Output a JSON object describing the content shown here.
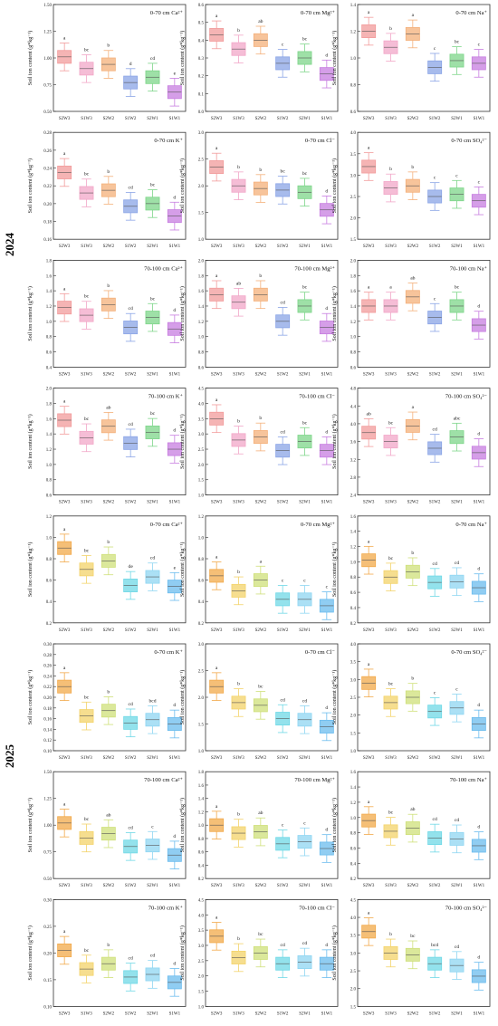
{
  "figure": {
    "ylabel": "Soil ion content (g*kg⁻¹)",
    "categories": [
      "S2W3",
      "S1W3",
      "S2W2",
      "S1W2",
      "S2W1",
      "S1W1"
    ],
    "colors": {
      "2024": [
        "#f29b9b",
        "#f2a7c8",
        "#f4b07a",
        "#8aa4e6",
        "#7ed68a",
        "#c77de0"
      ],
      "2025": [
        "#f2a94a",
        "#f3d36a",
        "#cfe07a",
        "#6fd8e6",
        "#8fd6f2",
        "#6bbcee"
      ]
    }
  },
  "years": [
    {
      "label": "2024"
    },
    {
      "label": "2025"
    }
  ],
  "chart_data": [
    {
      "type": "box",
      "year": "2024",
      "title": "0-70 cm Ca²⁺",
      "ylim": [
        0.5,
        1.5
      ],
      "ticks": [
        "0.50",
        "0.75",
        "1.00",
        "1.25",
        "1.50"
      ],
      "values": [
        1.01,
        0.9,
        0.94,
        0.77,
        0.82,
        0.68
      ],
      "letters": [
        "a",
        "bc",
        "b",
        "d",
        "cd",
        "e"
      ]
    },
    {
      "type": "box",
      "year": "2024",
      "title": "0-70 cm Mg²⁺",
      "ylim": [
        0,
        0.6
      ],
      "ticks": [
        "0.0",
        "0.1",
        "0.2",
        "0.3",
        "0.4",
        "0.5",
        "0.6"
      ],
      "values": [
        0.43,
        0.35,
        0.4,
        0.27,
        0.3,
        0.21
      ],
      "letters": [
        "a",
        "b",
        "ab",
        "c",
        "bc",
        "d"
      ]
    },
    {
      "type": "box",
      "year": "2024",
      "title": "0-70 cm Na⁺",
      "ylim": [
        0.6,
        1.4
      ],
      "ticks": [
        "0.6",
        "0.8",
        "1.0",
        "1.2",
        "1.4"
      ],
      "values": [
        1.2,
        1.08,
        1.18,
        0.93,
        0.98,
        0.96
      ],
      "letters": [
        "a",
        "b",
        "a",
        "c",
        "bc",
        "c"
      ]
    },
    {
      "type": "box",
      "year": "2024",
      "title": "0-70 cm K⁺",
      "ylim": [
        0.16,
        0.28
      ],
      "ticks": [
        "0.16",
        "0.18",
        "0.20",
        "0.22",
        "0.24",
        "0.26",
        "0.28"
      ],
      "values": [
        0.235,
        0.212,
        0.215,
        0.197,
        0.2,
        0.186
      ],
      "letters": [
        "a",
        "bc",
        "b",
        "cd",
        "bc",
        "d"
      ]
    },
    {
      "type": "box",
      "year": "2024",
      "title": "0-70 cm Cl⁻",
      "ylim": [
        1.0,
        3.0
      ],
      "ticks": [
        "1.0",
        "1.5",
        "2.0",
        "2.5",
        "3.0"
      ],
      "values": [
        2.35,
        2.0,
        1.95,
        1.92,
        1.88,
        1.55
      ],
      "letters": [
        "a",
        "b",
        "b",
        "bc",
        "bc",
        "d"
      ]
    },
    {
      "type": "box",
      "year": "2024",
      "title": "0-70 cm SO₄²⁻",
      "ylim": [
        1.5,
        4.0
      ],
      "ticks": [
        "1.5",
        "2.0",
        "2.5",
        "3.0",
        "3.5",
        "4.0"
      ],
      "values": [
        3.2,
        2.7,
        2.75,
        2.5,
        2.55,
        2.4
      ],
      "letters": [
        "a",
        "b",
        "b",
        "c",
        "c",
        "c"
      ]
    },
    {
      "type": "box",
      "year": "2024",
      "title": "70-100 cm Ca²⁺",
      "ylim": [
        0.4,
        1.8
      ],
      "ticks": [
        "0.4",
        "0.6",
        "0.8",
        "1.0",
        "1.2",
        "1.4",
        "1.6",
        "1.8"
      ],
      "values": [
        1.18,
        1.08,
        1.22,
        0.92,
        1.05,
        0.9
      ],
      "letters": [
        "a",
        "bc",
        "b",
        "cd",
        "bc",
        "d"
      ]
    },
    {
      "type": "box",
      "year": "2024",
      "title": "70-100 cm Mg²⁺",
      "ylim": [
        0.6,
        2.0
      ],
      "ticks": [
        "0.6",
        "0.8",
        "1.0",
        "1.2",
        "1.4",
        "1.6",
        "1.8",
        "2.0"
      ],
      "values": [
        1.55,
        1.45,
        1.55,
        1.2,
        1.4,
        1.12
      ],
      "letters": [
        "a",
        "ab",
        "b",
        "cd",
        "bc",
        "d"
      ]
    },
    {
      "type": "box",
      "year": "2024",
      "title": "70-100 cm Na⁺",
      "ylim": [
        0.6,
        2.0
      ],
      "ticks": [
        "0.6",
        "0.8",
        "1.0",
        "1.2",
        "1.4",
        "1.6",
        "1.8",
        "2.0"
      ],
      "values": [
        1.4,
        1.4,
        1.52,
        1.25,
        1.4,
        1.15
      ],
      "letters": [
        "a",
        "a",
        "ab",
        "c",
        "bc",
        "d"
      ]
    },
    {
      "type": "box",
      "year": "2024",
      "title": "70-100 cm K⁺",
      "ylim": [
        0.6,
        2.0
      ],
      "ticks": [
        "0.6",
        "0.8",
        "1.0",
        "1.2",
        "1.4",
        "1.6",
        "1.8",
        "2.0"
      ],
      "values": [
        1.58,
        1.35,
        1.5,
        1.28,
        1.42,
        1.2
      ],
      "letters": [
        "a",
        "bc",
        "ab",
        "cd",
        "bc",
        "d"
      ]
    },
    {
      "type": "box",
      "year": "2024",
      "title": "70-100 cm Cl⁻",
      "ylim": [
        1.0,
        4.5
      ],
      "ticks": [
        "1.0",
        "1.5",
        "2.0",
        "2.5",
        "3.0",
        "3.5",
        "4.0",
        "4.5"
      ],
      "values": [
        3.5,
        2.8,
        2.9,
        2.45,
        2.75,
        2.45
      ],
      "letters": [
        "a",
        "b",
        "b",
        "cd",
        "bc",
        "d"
      ]
    },
    {
      "type": "box",
      "year": "2024",
      "title": "70-100 cm SO₄²⁻",
      "ylim": [
        2.4,
        4.8
      ],
      "ticks": [
        "2.4",
        "2.8",
        "3.2",
        "3.6",
        "4.0",
        "4.4",
        "4.8"
      ],
      "values": [
        3.8,
        3.6,
        3.95,
        3.45,
        3.7,
        3.35
      ],
      "letters": [
        "ab",
        "bc",
        "a",
        "cd",
        "abc",
        "d"
      ]
    },
    {
      "type": "box",
      "year": "2025",
      "title": "0-70 cm Ca²⁺",
      "ylim": [
        0.2,
        1.2
      ],
      "ticks": [
        "0.2",
        "0.4",
        "0.6",
        "0.8",
        "1.0",
        "1.2"
      ],
      "values": [
        0.9,
        0.7,
        0.78,
        0.55,
        0.63,
        0.54
      ],
      "letters": [
        "a",
        "bc",
        "b",
        "de",
        "cd",
        "e"
      ]
    },
    {
      "type": "box",
      "year": "2025",
      "title": "0-70 cm Mg²⁺",
      "ylim": [
        0.2,
        1.2
      ],
      "ticks": [
        "0.2",
        "0.4",
        "0.6",
        "0.8",
        "1.0",
        "1.2"
      ],
      "values": [
        0.64,
        0.5,
        0.6,
        0.42,
        0.42,
        0.36
      ],
      "letters": [
        "a",
        "b",
        "a",
        "c",
        "c",
        "c"
      ]
    },
    {
      "type": "box",
      "year": "2025",
      "title": "0-70 cm Na⁺",
      "ylim": [
        0.2,
        1.6
      ],
      "ticks": [
        "0.2",
        "0.4",
        "0.6",
        "0.8",
        "1.0",
        "1.2",
        "1.4",
        "1.6"
      ],
      "values": [
        1.02,
        0.8,
        0.87,
        0.73,
        0.74,
        0.66
      ],
      "letters": [
        "a",
        "bc",
        "b",
        "cd",
        "cd",
        "d"
      ]
    },
    {
      "type": "box",
      "year": "2025",
      "title": "0-70 cm K⁺",
      "ylim": [
        0.1,
        0.3
      ],
      "ticks": [
        "0.10",
        "0.12",
        "0.14",
        "0.16",
        "0.18",
        "0.20",
        "0.22",
        "0.24",
        "0.26",
        "0.28",
        "0.30"
      ],
      "values": [
        0.22,
        0.165,
        0.175,
        0.152,
        0.158,
        0.15
      ],
      "letters": [
        "a",
        "bc",
        "b",
        "cd",
        "bcd",
        "d"
      ]
    },
    {
      "type": "box",
      "year": "2025",
      "title": "0-70 cm Cl⁻",
      "ylim": [
        1.0,
        3.0
      ],
      "ticks": [
        "1.0",
        "1.5",
        "2.0",
        "2.5",
        "3.0"
      ],
      "values": [
        2.2,
        1.9,
        1.85,
        1.6,
        1.58,
        1.45
      ],
      "letters": [
        "a",
        "b",
        "bc",
        "cd",
        "cd",
        "d"
      ]
    },
    {
      "type": "box",
      "year": "2025",
      "title": "0-70 cm SO₄²⁻",
      "ylim": [
        1.0,
        4.0
      ],
      "ticks": [
        "1.0",
        "1.5",
        "2.0",
        "2.5",
        "3.0",
        "3.5",
        "4.0"
      ],
      "values": [
        2.9,
        2.35,
        2.5,
        2.1,
        2.2,
        1.75
      ],
      "letters": [
        "a",
        "bc",
        "b",
        "c",
        "c",
        "d"
      ]
    },
    {
      "type": "box",
      "year": "2025",
      "title": "70-100 cm Ca²⁺",
      "ylim": [
        0.5,
        1.5
      ],
      "ticks": [
        "0.50",
        "0.75",
        "1.00",
        "1.25",
        "1.50"
      ],
      "values": [
        1.02,
        0.88,
        0.92,
        0.8,
        0.81,
        0.72
      ],
      "letters": [
        "a",
        "bc",
        "ab",
        "cd",
        "c",
        "d"
      ]
    },
    {
      "type": "box",
      "year": "2025",
      "title": "70-100 cm Mg²⁺",
      "ylim": [
        0.2,
        1.8
      ],
      "ticks": [
        "0.2",
        "0.4",
        "0.6",
        "0.8",
        "1.0",
        "1.2",
        "1.4",
        "1.6",
        "1.8"
      ],
      "values": [
        1.0,
        0.88,
        0.9,
        0.72,
        0.75,
        0.65
      ],
      "letters": [
        "a",
        "b",
        "ab",
        "c",
        "c",
        "d"
      ]
    },
    {
      "type": "box",
      "year": "2025",
      "title": "70-100 cm Na⁺",
      "ylim": [
        0.2,
        1.6
      ],
      "ticks": [
        "0.2",
        "0.4",
        "0.6",
        "0.8",
        "1.0",
        "1.2",
        "1.4",
        "1.6"
      ],
      "values": [
        0.96,
        0.82,
        0.86,
        0.73,
        0.72,
        0.63
      ],
      "letters": [
        "a",
        "bc",
        "ab",
        "cd",
        "cd",
        "d"
      ]
    },
    {
      "type": "box",
      "year": "2025",
      "title": "70-100 cm K⁺",
      "ylim": [
        0.1,
        0.3
      ],
      "ticks": [
        "0.10",
        "0.15",
        "0.20",
        "0.25",
        "0.30"
      ],
      "values": [
        0.205,
        0.17,
        0.18,
        0.155,
        0.16,
        0.145
      ],
      "letters": [
        "a",
        "bc",
        "b",
        "cd",
        "cd",
        "d"
      ]
    },
    {
      "type": "box",
      "year": "2025",
      "title": "70-100 cm Cl⁻",
      "ylim": [
        1.0,
        4.5
      ],
      "ticks": [
        "1.0",
        "1.5",
        "2.0",
        "2.5",
        "3.0",
        "3.5",
        "4.0",
        "4.5"
      ],
      "values": [
        3.3,
        2.6,
        2.75,
        2.4,
        2.45,
        2.4
      ],
      "letters": [
        "a",
        "b",
        "bc",
        "cd",
        "cd",
        "d"
      ]
    },
    {
      "type": "box",
      "year": "2025",
      "title": "70-100 cm SO₄²⁻",
      "ylim": [
        1.5,
        4.5
      ],
      "ticks": [
        "1.5",
        "2.0",
        "2.5",
        "3.0",
        "3.5",
        "4.0",
        "4.5"
      ],
      "values": [
        3.6,
        3.0,
        2.95,
        2.7,
        2.65,
        2.35
      ],
      "letters": [
        "a",
        "b",
        "bc",
        "bcd",
        "cd",
        "d"
      ]
    }
  ]
}
